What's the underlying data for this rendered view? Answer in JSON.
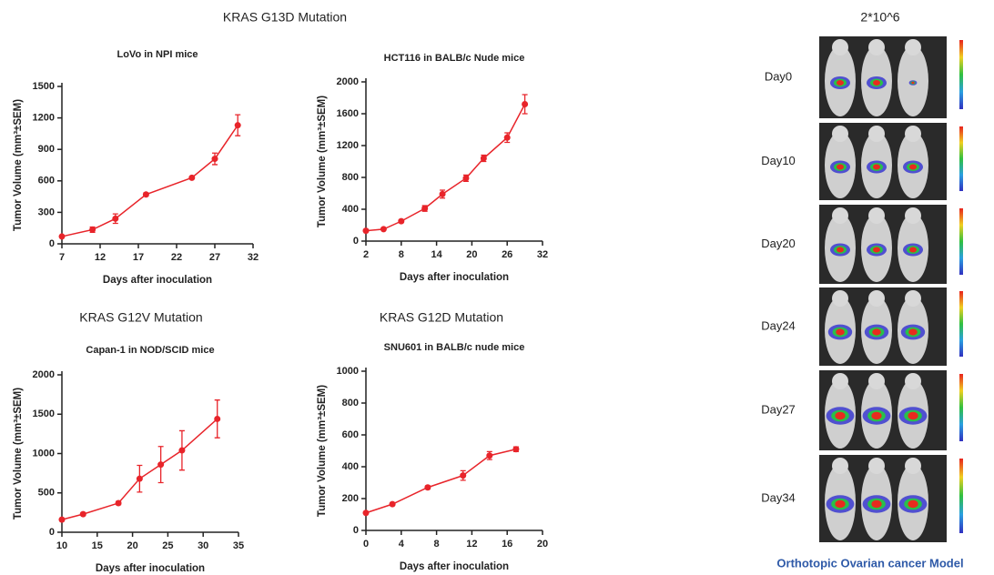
{
  "section_titles": [
    "KRAS G13D Mutation",
    "KRAS G12V Mutation",
    "KRAS G12D Mutation"
  ],
  "chart_data": [
    {
      "type": "line",
      "title": "LoVo in NPI mice",
      "x_label": "Days after inoculation",
      "y_label": "Tumor Volume (mm³±SEM)",
      "color": "#e8242a",
      "x": [
        7,
        11,
        14,
        18,
        24,
        27,
        30
      ],
      "values": [
        70,
        135,
        240,
        470,
        630,
        810,
        1130
      ],
      "errors": [
        5,
        25,
        45,
        15,
        10,
        55,
        100
      ],
      "xlim": [
        7,
        32
      ],
      "xticks": [
        7,
        12,
        17,
        22,
        27,
        32
      ],
      "ylim": [
        0,
        1500
      ],
      "yticks": [
        0,
        300,
        600,
        900,
        1200,
        1500
      ]
    },
    {
      "type": "line",
      "title": "HCT116 in BALB/c Nude mice",
      "x_label": "Days after inoculation",
      "y_label": "Tumor Volume (mm³±SEM)",
      "color": "#e8242a",
      "x": [
        2,
        5,
        8,
        12,
        15,
        19,
        22,
        26,
        29
      ],
      "values": [
        130,
        150,
        250,
        410,
        590,
        790,
        1040,
        1300,
        1720
      ],
      "errors": [
        10,
        10,
        15,
        35,
        50,
        40,
        40,
        60,
        120
      ],
      "xlim": [
        2,
        32
      ],
      "xticks": [
        2,
        8,
        14,
        20,
        26,
        32
      ],
      "ylim": [
        0,
        2000
      ],
      "yticks": [
        0,
        400,
        800,
        1200,
        1600,
        2000
      ]
    },
    {
      "type": "line",
      "title": "Capan-1 in NOD/SCID mice",
      "x_label": "Days after inoculation",
      "y_label": "Tumor Volume (mm³±SEM)",
      "color": "#e8242a",
      "x": [
        10,
        13,
        18,
        21,
        24,
        27,
        32
      ],
      "values": [
        160,
        230,
        370,
        680,
        860,
        1040,
        1440
      ],
      "errors": [
        10,
        15,
        20,
        170,
        230,
        250,
        240
      ],
      "xlim": [
        10,
        35
      ],
      "xticks": [
        10,
        15,
        20,
        25,
        30,
        35
      ],
      "ylim": [
        0,
        2000
      ],
      "yticks": [
        0,
        500,
        1000,
        1500,
        2000
      ]
    },
    {
      "type": "line",
      "title": "SNU601 in BALB/c nude mice",
      "x_label": "Days after inoculation",
      "y_label": "Tumor Volume (mm³±SEM)",
      "color": "#e8242a",
      "x": [
        0,
        3,
        7,
        11,
        14,
        17
      ],
      "values": [
        110,
        165,
        270,
        345,
        470,
        510
      ],
      "errors": [
        5,
        8,
        10,
        30,
        25,
        15
      ],
      "xlim": [
        0,
        20
      ],
      "xticks": [
        0,
        4,
        8,
        12,
        16,
        20
      ],
      "ylim": [
        0,
        1000
      ],
      "yticks": [
        0,
        200,
        400,
        600,
        800,
        1000
      ]
    }
  ],
  "imaging": {
    "dose": "2*10^6",
    "days": [
      "Day0",
      "Day10",
      "Day20",
      "Day24",
      "Day27",
      "Day34"
    ],
    "caption": "Orthotopic Ovarian cancer Model"
  }
}
